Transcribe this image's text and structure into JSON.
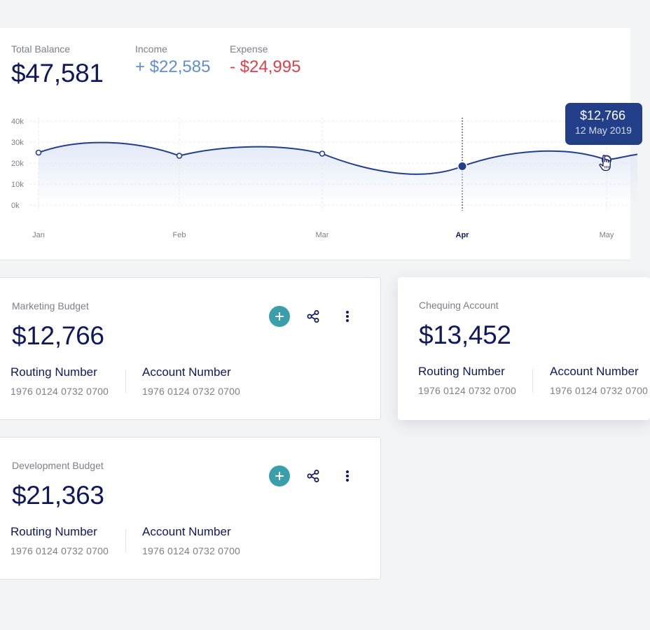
{
  "summary": {
    "total_label": "Total Balance",
    "total_value": "$47,581",
    "income_label": "Income",
    "income_value": "+ $22,585",
    "expense_label": "Expense",
    "expense_value": "- $24,995"
  },
  "chart_data": {
    "type": "line",
    "x": [
      "Jan",
      "Feb",
      "Mar",
      "Apr",
      "May"
    ],
    "series": [
      {
        "values": [
          25000,
          23500,
          24500,
          18500,
          21500
        ]
      }
    ],
    "y_ticks": [
      "40k",
      "30k",
      "20k",
      "10k",
      "0k"
    ],
    "ylim": [
      0,
      40000
    ],
    "active_point": "Apr",
    "grid": true,
    "colors": {
      "line": "#233f8a",
      "fill": "#dfe6f6"
    }
  },
  "tooltip": {
    "value": "$12,766",
    "date": "12 May 2019"
  },
  "cards": [
    {
      "title": "Marketing Budget",
      "amount": "$12,766",
      "routing_label": "Routing Number",
      "routing_value": "1976 0124 0732 0700",
      "account_label": "Account Number",
      "account_value": "1976 0124 0732 0700"
    },
    {
      "title": "Chequing Account",
      "amount": "$13,452",
      "routing_label": "Routing Number",
      "routing_value": "1976 0124 0732 0700",
      "account_label": "Account Number",
      "account_value": "1976 0124 0732 0700"
    },
    {
      "title": "Development Budget",
      "amount": "$21,363",
      "routing_label": "Routing Number",
      "routing_value": "1976 0124 0732 0700",
      "account_label": "Account Number",
      "account_value": "1976 0124 0732 0700"
    }
  ],
  "icons": {
    "add": "plus-icon",
    "share": "share-icon",
    "more": "more-vertical-icon",
    "cursor": "hand-cursor-icon"
  },
  "colors": {
    "navy": "#10185c",
    "income": "#5f8fcc",
    "expense": "#d9434d",
    "teal": "#3a9fab",
    "tooltip": "#233f8a"
  }
}
